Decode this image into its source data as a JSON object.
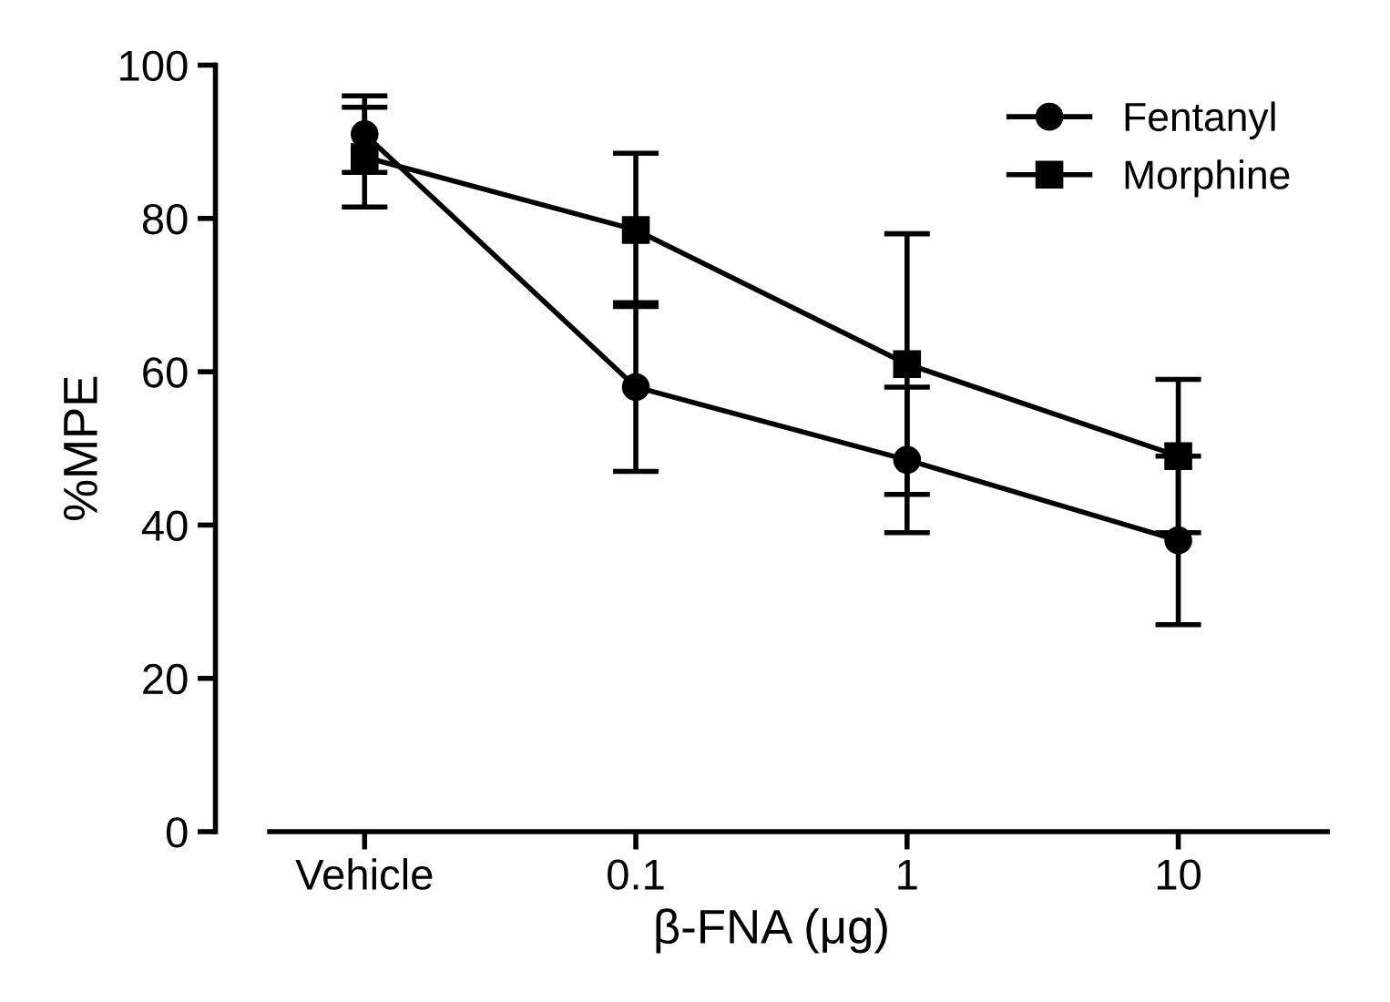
{
  "chart_data": {
    "type": "line",
    "xlabel": "β-FNA (μg)",
    "ylabel": "%MPE",
    "categories": [
      "Vehicle",
      "0.1",
      "1",
      "10"
    ],
    "series": [
      {
        "name": "Fentanyl",
        "color": "#000000",
        "marker": "circle",
        "values": [
          91,
          58,
          48.5,
          38
        ],
        "errors": [
          5,
          11,
          9.5,
          11
        ]
      },
      {
        "name": "Morphine",
        "color": "#000000",
        "marker": "square",
        "values": [
          88,
          78.5,
          61,
          49
        ],
        "errors": [
          6.5,
          10,
          17,
          10
        ]
      }
    ],
    "ylim": [
      0,
      100
    ],
    "yticks": [
      0,
      20,
      40,
      60,
      80,
      100
    ],
    "grid": false,
    "legend": "top right",
    "line_style": "solid"
  }
}
